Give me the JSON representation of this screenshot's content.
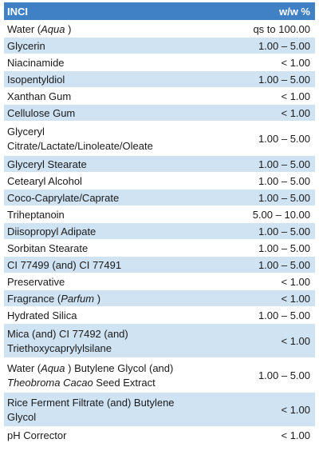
{
  "table": {
    "header": {
      "name": "INCI",
      "pct": "w/w %"
    },
    "rows": [
      {
        "parts": [
          {
            "t": "Water ("
          },
          {
            "t": "Aqua",
            "i": true
          },
          {
            "t": " )"
          }
        ],
        "pct": "qs to 100.00"
      },
      {
        "parts": [
          {
            "t": "Glycerin"
          }
        ],
        "pct": "1.00 – 5.00"
      },
      {
        "parts": [
          {
            "t": "Niacinamide"
          }
        ],
        "pct": "< 1.00"
      },
      {
        "parts": [
          {
            "t": "Isopentyldiol"
          }
        ],
        "pct": "1.00 – 5.00"
      },
      {
        "parts": [
          {
            "t": "Xanthan Gum"
          }
        ],
        "pct": "< 1.00"
      },
      {
        "parts": [
          {
            "t": "Cellulose Gum"
          }
        ],
        "pct": "< 1.00"
      },
      {
        "parts": [
          {
            "t": "Glyceryl"
          },
          {
            "br": true
          },
          {
            "t": "Citrate/Lactate/Linoleate/Oleate"
          }
        ],
        "pct": "1.00 – 5.00",
        "tall": true
      },
      {
        "parts": [
          {
            "t": "Glyceryl Stearate"
          }
        ],
        "pct": "1.00 – 5.00"
      },
      {
        "parts": [
          {
            "t": "Cetearyl Alcohol"
          }
        ],
        "pct": "1.00 – 5.00"
      },
      {
        "parts": [
          {
            "t": "Coco-Caprylate/Caprate"
          }
        ],
        "pct": "1.00 – 5.00"
      },
      {
        "parts": [
          {
            "t": "Triheptanoin"
          }
        ],
        "pct": "5.00 – 10.00"
      },
      {
        "parts": [
          {
            "t": "Diisopropyl Adipate"
          }
        ],
        "pct": "1.00 – 5.00"
      },
      {
        "parts": [
          {
            "t": "Sorbitan Stearate"
          }
        ],
        "pct": "1.00 – 5.00"
      },
      {
        "parts": [
          {
            "t": "CI 77499 (and) CI 77491"
          }
        ],
        "pct": "1.00 – 5.00"
      },
      {
        "parts": [
          {
            "t": "Preservative"
          }
        ],
        "pct": "< 1.00"
      },
      {
        "parts": [
          {
            "t": "Fragrance ("
          },
          {
            "t": "Parfum",
            "i": true
          },
          {
            "t": " )"
          }
        ],
        "pct": "< 1.00"
      },
      {
        "parts": [
          {
            "t": "Hydrated Silica"
          }
        ],
        "pct": "1.00 – 5.00"
      },
      {
        "parts": [
          {
            "t": "Mica (and) CI 77492 (and)"
          },
          {
            "br": true
          },
          {
            "t": "Triethoxycaprylylsilane"
          }
        ],
        "pct": "< 1.00",
        "tall": true
      },
      {
        "parts": [
          {
            "t": "Water ("
          },
          {
            "t": "Aqua",
            "i": true
          },
          {
            "t": " ) Butylene Glycol (and)"
          },
          {
            "br": true
          },
          {
            "t": "Theobroma Cacao",
            "i": true
          },
          {
            "t": " Seed Extract"
          }
        ],
        "pct": "1.00 – 5.00",
        "tall": true
      },
      {
        "parts": [
          {
            "t": "Rice Ferment Filtrate (and) Butylene"
          },
          {
            "br": true
          },
          {
            "t": "Glycol"
          }
        ],
        "pct": "< 1.00",
        "tall": true
      },
      {
        "parts": [
          {
            "t": "pH Corrector"
          }
        ],
        "pct": "< 1.00"
      }
    ]
  }
}
